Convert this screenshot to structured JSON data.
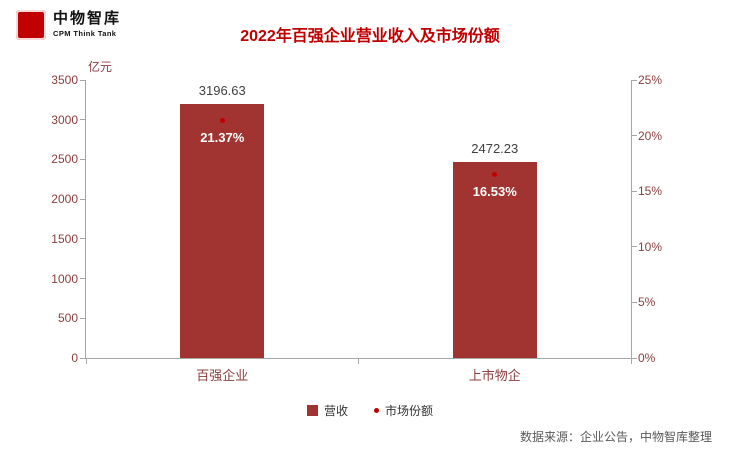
{
  "logo": {
    "brand_cn": "中物智库",
    "brand_en": "CPM Think Tank",
    "icon_glyph": "中"
  },
  "title": "2022年百强企业营业收入及市场份额",
  "chart_data": {
    "type": "bar",
    "title": "2022年百强企业营业收入及市场份额",
    "unit_label": "亿元",
    "categories": [
      "百强企业",
      "上市物企"
    ],
    "category_centers_pct": [
      25,
      75
    ],
    "series": [
      {
        "name": "营收",
        "type": "bar",
        "axis": "left",
        "values": [
          3196.63,
          2472.23
        ],
        "labels": [
          "3196.63",
          "2472.23"
        ]
      },
      {
        "name": "市场份额",
        "type": "scatter",
        "axis": "right",
        "values": [
          21.37,
          16.53
        ],
        "labels": [
          "21.37%",
          "16.53%"
        ]
      }
    ],
    "left_axis": {
      "min": 0,
      "max": 3500,
      "step": 500
    },
    "right_axis": {
      "min": 0,
      "max": 25,
      "step": 5,
      "suffix": "%"
    },
    "legend_position": "bottom",
    "grid": false
  },
  "colors": {
    "bar": "#A13431",
    "accent": "#C00000",
    "axis_text": "#8B3E3E",
    "marker": "#C00000",
    "axis_line": "#A6A6A6"
  },
  "source": "数据来源：企业公告，中物智库整理"
}
